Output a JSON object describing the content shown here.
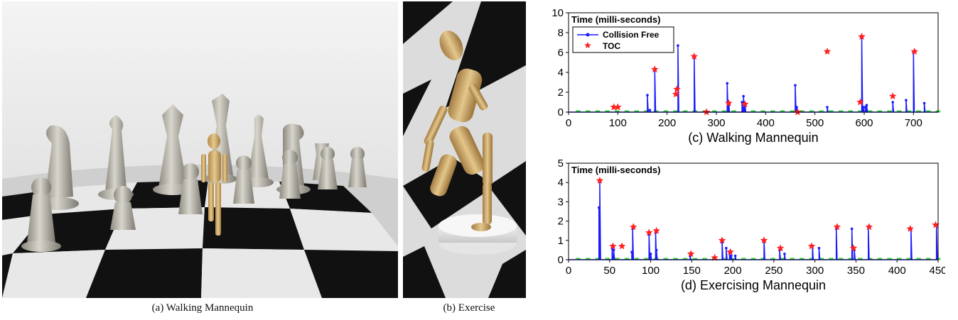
{
  "captions": {
    "a": "(a)  Walking Mannequin",
    "b": "(b)  Exercise"
  },
  "chart_data": [
    {
      "type": "line",
      "title": "(c) Walking Mannequin",
      "ylabel": "Time (milli-seconds)",
      "xlabel": "",
      "xlim": [
        0,
        750
      ],
      "ylim": [
        0,
        10
      ],
      "xticks": [
        0,
        100,
        200,
        300,
        400,
        500,
        600,
        700
      ],
      "yticks": [
        0,
        2,
        4,
        6,
        8,
        10
      ],
      "legend": "top-left",
      "grid": false,
      "colors": {
        "collision_free": "#1a1aff",
        "toc": "#ff2020",
        "baseline": "#33dd33"
      },
      "series": [
        {
          "name": "Collision Free",
          "style": "line-with-markers",
          "spikes": [
            [
              160,
              1.7
            ],
            [
              165,
              0.2
            ],
            [
              175,
              4.2
            ],
            [
              222,
              6.7
            ],
            [
              255,
              5.5
            ],
            [
              322,
              2.9
            ],
            [
              325,
              1.0
            ],
            [
              352,
              1.0
            ],
            [
              355,
              1.6
            ],
            [
              358,
              0.8
            ],
            [
              460,
              2.7
            ],
            [
              463,
              0.5
            ],
            [
              525,
              0.5
            ],
            [
              595,
              7.5
            ],
            [
              598,
              0.5
            ],
            [
              602,
              0.5
            ],
            [
              605,
              0.7
            ],
            [
              658,
              1.0
            ],
            [
              685,
              1.2
            ],
            [
              700,
              6.0
            ],
            [
              722,
              0.9
            ]
          ]
        },
        {
          "name": "TOC",
          "style": "star-markers",
          "points": [
            [
              92,
              0.5
            ],
            [
              100,
              0.5
            ],
            [
              175,
              4.3
            ],
            [
              218,
              1.8
            ],
            [
              220,
              2.3
            ],
            [
              255,
              5.6
            ],
            [
              280,
              0.0
            ],
            [
              325,
              0.9
            ],
            [
              358,
              0.8
            ],
            [
              465,
              0.0
            ],
            [
              525,
              6.1
            ],
            [
              592,
              1.0
            ],
            [
              595,
              7.6
            ],
            [
              658,
              1.6
            ],
            [
              702,
              6.1
            ]
          ]
        }
      ]
    },
    {
      "type": "line",
      "title": "(d) Exercising Mannequin",
      "ylabel": "Time (milli-seconds)",
      "xlabel": "",
      "xlim": [
        0,
        450
      ],
      "ylim": [
        0,
        5
      ],
      "xticks": [
        0,
        50,
        100,
        150,
        200,
        250,
        300,
        350,
        400,
        450
      ],
      "yticks": [
        0,
        1,
        2,
        3,
        4,
        5
      ],
      "grid": false,
      "colors": {
        "collision_free": "#1a1aff",
        "toc": "#ff2020",
        "baseline": "#33dd33"
      },
      "series": [
        {
          "name": "Collision Free",
          "style": "line-with-markers",
          "spikes": [
            [
              37,
              2.7
            ],
            [
              38,
              4.1
            ],
            [
              53,
              0.6
            ],
            [
              55,
              0.5
            ],
            [
              77,
              0.4
            ],
            [
              78,
              1.6
            ],
            [
              98,
              1.3
            ],
            [
              100,
              0.3
            ],
            [
              106,
              1.4
            ],
            [
              107,
              0.5
            ],
            [
              148,
              0.2
            ],
            [
              187,
              0.9
            ],
            [
              192,
              0.6
            ],
            [
              196,
              0.4
            ],
            [
              198,
              0.2
            ],
            [
              203,
              0.2
            ],
            [
              238,
              1.0
            ],
            [
              257,
              0.5
            ],
            [
              263,
              0.3
            ],
            [
              297,
              0.7
            ],
            [
              305,
              0.6
            ],
            [
              326,
              1.6
            ],
            [
              345,
              1.6
            ],
            [
              348,
              0.5
            ],
            [
              365,
              1.7
            ],
            [
              417,
              1.6
            ],
            [
              448,
              1.8
            ]
          ]
        },
        {
          "name": "TOC",
          "style": "star-markers",
          "points": [
            [
              38,
              4.1
            ],
            [
              54,
              0.7
            ],
            [
              65,
              0.7
            ],
            [
              79,
              1.7
            ],
            [
              98,
              1.4
            ],
            [
              107,
              1.5
            ],
            [
              149,
              0.3
            ],
            [
              178,
              0.1
            ],
            [
              187,
              1.0
            ],
            [
              197,
              0.4
            ],
            [
              238,
              1.0
            ],
            [
              258,
              0.6
            ],
            [
              296,
              0.7
            ],
            [
              327,
              1.7
            ],
            [
              347,
              0.6
            ],
            [
              366,
              1.7
            ],
            [
              416,
              1.6
            ],
            [
              447,
              1.8
            ]
          ]
        }
      ]
    }
  ]
}
